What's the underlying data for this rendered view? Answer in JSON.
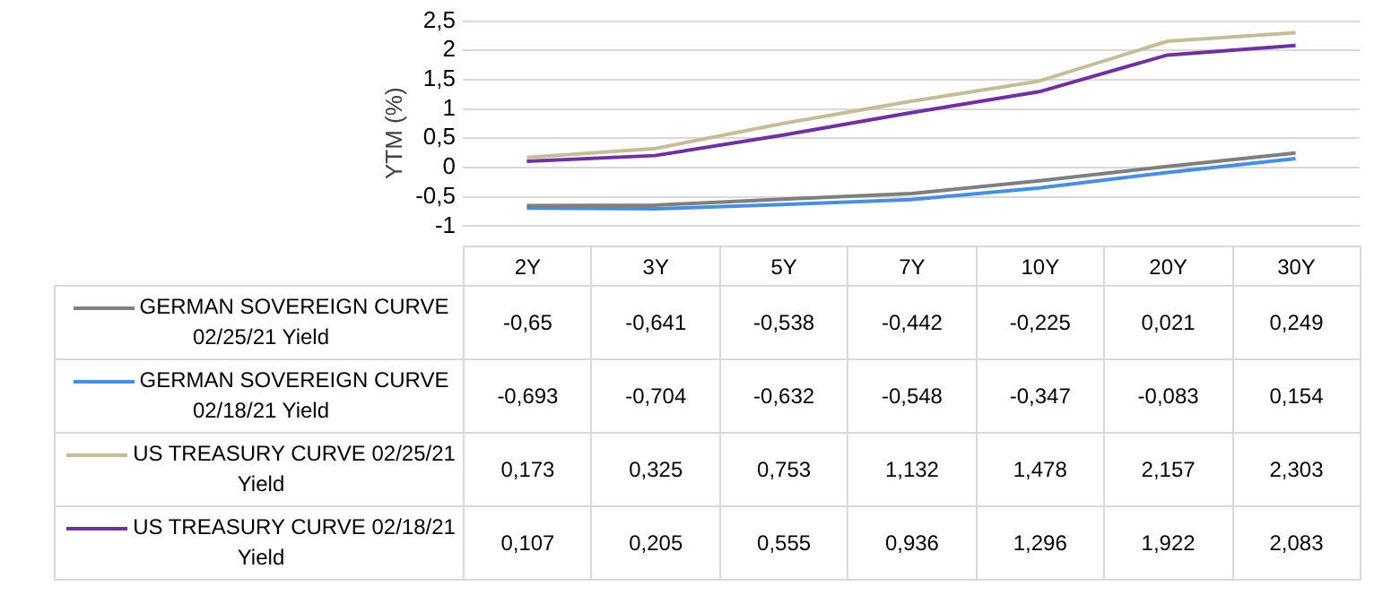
{
  "chart_data": {
    "type": "line",
    "ylabel": "YTM (%)",
    "categories": [
      "2Y",
      "3Y",
      "5Y",
      "7Y",
      "10Y",
      "20Y",
      "30Y"
    ],
    "series": [
      {
        "name": "GERMAN SOVEREIGN CURVE 02/25/21 Yield",
        "color": "#7f7f7f",
        "values": [
          -0.65,
          -0.641,
          -0.538,
          -0.442,
          -0.225,
          0.021,
          0.249
        ],
        "value_labels": [
          "-0,65",
          "-0,641",
          "-0,538",
          "-0,442",
          "-0,225",
          "0,021",
          "0,249"
        ]
      },
      {
        "name": "GERMAN SOVEREIGN CURVE 02/18/21 Yield",
        "color": "#4a8fdc",
        "values": [
          -0.693,
          -0.704,
          -0.632,
          -0.548,
          -0.347,
          -0.083,
          0.154
        ],
        "value_labels": [
          "-0,693",
          "-0,704",
          "-0,632",
          "-0,548",
          "-0,347",
          "-0,083",
          "0,154"
        ]
      },
      {
        "name": "US TREASURY CURVE 02/25/21 Yield",
        "color": "#c4bd97",
        "values": [
          0.173,
          0.325,
          0.753,
          1.132,
          1.478,
          2.157,
          2.303
        ],
        "value_labels": [
          "0,173",
          "0,325",
          "0,753",
          "1,132",
          "1,478",
          "2,157",
          "2,303"
        ]
      },
      {
        "name": "US TREASURY CURVE 02/18/21 Yield",
        "color": "#7030a0",
        "values": [
          0.107,
          0.205,
          0.555,
          0.936,
          1.296,
          1.922,
          2.083
        ],
        "value_labels": [
          "0,107",
          "0,205",
          "0,555",
          "0,936",
          "1,296",
          "1,922",
          "2,083"
        ]
      }
    ],
    "ylim": [
      -1,
      2.5
    ],
    "yticks": [
      {
        "value": -1,
        "label": "-1"
      },
      {
        "value": -0.5,
        "label": "-0,5"
      },
      {
        "value": 0,
        "label": "0"
      },
      {
        "value": 0.5,
        "label": "0,5"
      },
      {
        "value": 1,
        "label": "1"
      },
      {
        "value": 1.5,
        "label": "1,5"
      },
      {
        "value": 2,
        "label": "2"
      },
      {
        "value": 2.5,
        "label": "2,5"
      }
    ],
    "grid": "y",
    "legend": "bottom",
    "marker": "none",
    "line_style": "solid"
  }
}
